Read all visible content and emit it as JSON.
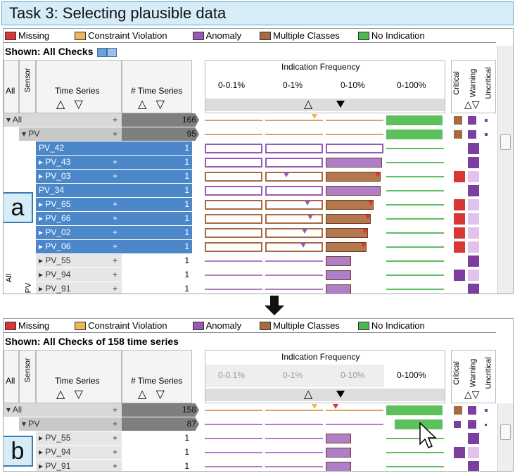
{
  "title": "Task 3: Selecting plausible data",
  "legend": [
    {
      "label": "Missing",
      "color": "#d93636"
    },
    {
      "label": "Constraint Violation",
      "color": "#f2b45a"
    },
    {
      "label": "Anomaly",
      "color": "#9b59b6"
    },
    {
      "label": "Multiple Classes",
      "color": "#a86a42"
    },
    {
      "label": "No Indication",
      "color": "#4db84d"
    }
  ],
  "panel_a": {
    "shown": "Shown: All Checks",
    "headers": {
      "all": "All",
      "sensor": "Sensor",
      "time_series": "Time Series",
      "count": "# Time Series",
      "freq": "Indication Frequency",
      "bins": [
        "0-0.1%",
        "0-1%",
        "0-10%",
        "0-100%"
      ],
      "severity": [
        "Critical",
        "Warning",
        "Uncritical"
      ]
    },
    "rows": [
      {
        "name": "All",
        "count": "166"
      },
      {
        "name": "PV",
        "count": "95"
      },
      {
        "name": "PV_42",
        "count": "1"
      },
      {
        "name": "PV_43",
        "count": "1"
      },
      {
        "name": "PV_03",
        "count": "1"
      },
      {
        "name": "PV_34",
        "count": "1"
      },
      {
        "name": "PV_65",
        "count": "1"
      },
      {
        "name": "PV_66",
        "count": "1"
      },
      {
        "name": "PV_02",
        "count": "1"
      },
      {
        "name": "PV_06",
        "count": "1"
      },
      {
        "name": "PV_55",
        "count": "1"
      },
      {
        "name": "PV_94",
        "count": "1"
      },
      {
        "name": "PV_91",
        "count": "1"
      }
    ],
    "side_all": "All",
    "side_pv": "PV",
    "label": "a"
  },
  "panel_b": {
    "shown": "Shown: All Checks of 158 time series",
    "rows": [
      {
        "name": "All",
        "count": "158"
      },
      {
        "name": "PV",
        "count": "87"
      },
      {
        "name": "PV_55",
        "count": "1"
      },
      {
        "name": "PV_94",
        "count": "1"
      },
      {
        "name": "PV_91",
        "count": "1"
      }
    ],
    "label": "b"
  },
  "icons": {
    "up": "△",
    "down": "▽",
    "plus": "+",
    "expand": "▸"
  }
}
